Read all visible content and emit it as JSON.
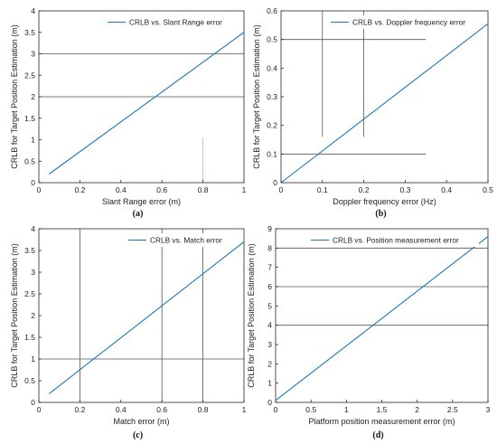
{
  "chart_data": [
    {
      "type": "line",
      "caption": "(a)",
      "xlabel": "Slant Range error (m)",
      "ylabel": "CRLB for Target Position Estimation (m)",
      "xlim": [
        0,
        1
      ],
      "ylim": [
        0,
        4
      ],
      "xticks": [
        "0",
        "0.2",
        "0.4",
        "0.6",
        "0.8",
        "1"
      ],
      "yticks": [
        "0",
        "0.5",
        "1",
        "1.5",
        "2",
        "2.5",
        "3",
        "3.5",
        "4"
      ],
      "legend_position": "top-left",
      "series": [
        {
          "name": "CRLB vs. Slant Range error",
          "x": [
            0.05,
            1.0
          ],
          "y": [
            0.2,
            3.5
          ]
        }
      ],
      "gridlines": {
        "h": [
          {
            "value": 3.0,
            "from": 0,
            "to": 1
          },
          {
            "value": 2.0,
            "from": 0,
            "to": 1
          }
        ],
        "v": [
          {
            "value": 0.8,
            "from": 0,
            "to": 1.05
          }
        ]
      }
    },
    {
      "type": "line",
      "caption": "(b)",
      "xlabel": "Doppler frequency error (Hz)",
      "ylabel": "CRLB for Target Position Estimation (m)",
      "xlim": [
        0,
        0.5
      ],
      "ylim": [
        0,
        0.6
      ],
      "xticks": [
        "0",
        "0.1",
        "0.2",
        "0.3",
        "0.4",
        "0.5"
      ],
      "yticks": [
        "0",
        "0.1",
        "0.2",
        "0.3",
        "0.4",
        "0.5",
        "0.6"
      ],
      "legend_position": "top-right",
      "series": [
        {
          "name": "CRLB vs. Doppler frequency error",
          "x": [
            0.0,
            0.5
          ],
          "y": [
            0.0,
            0.555
          ]
        }
      ],
      "gridlines": {
        "h": [
          {
            "value": 0.5,
            "from": 0,
            "to": 0.35
          },
          {
            "value": 0.1,
            "from": 0,
            "to": 0.35
          }
        ],
        "v": [
          {
            "value": 0.1,
            "from": 0.16,
            "to": 0.6
          },
          {
            "value": 0.2,
            "from": 0.16,
            "to": 0.6
          }
        ]
      }
    },
    {
      "type": "line",
      "caption": "(c)",
      "xlabel": "Match error (m)",
      "ylabel": "CRLB for Target Position Estimation (m)",
      "xlim": [
        0,
        1
      ],
      "ylim": [
        0,
        4
      ],
      "xticks": [
        "0",
        "0.2",
        "0.4",
        "0.6",
        "0.8",
        "1"
      ],
      "yticks": [
        "0",
        "0.5",
        "1",
        "1.5",
        "2",
        "2.5",
        "3",
        "3.5",
        "4"
      ],
      "legend_position": "top-right",
      "series": [
        {
          "name": "CRLB vs. Match error",
          "x": [
            0.05,
            1.0
          ],
          "y": [
            0.2,
            3.7
          ]
        }
      ],
      "gridlines": {
        "h": [
          {
            "value": 1.0,
            "from": 0,
            "to": 1
          }
        ],
        "v": [
          {
            "value": 0.2,
            "from": 0,
            "to": 4
          },
          {
            "value": 0.6,
            "from": 0,
            "to": 4
          },
          {
            "value": 0.8,
            "from": 0,
            "to": 4
          }
        ]
      }
    },
    {
      "type": "line",
      "caption": "(d)",
      "xlabel": "Platform position measurement error (m)",
      "ylabel": "CRLB for Target Position Estimation (m)",
      "xlim": [
        0,
        3
      ],
      "ylim": [
        0,
        9
      ],
      "xticks": [
        "0",
        "0.5",
        "1",
        "1.5",
        "2",
        "2.5",
        "3"
      ],
      "yticks": [
        "0",
        "1",
        "2",
        "3",
        "4",
        "5",
        "6",
        "7",
        "8",
        "9"
      ],
      "legend_position": "top-right",
      "series": [
        {
          "name": "CRLB vs. Position measurement error",
          "x": [
            0.0,
            3.0
          ],
          "y": [
            0.1,
            8.6
          ]
        }
      ],
      "gridlines": {
        "h": [
          {
            "value": 8.0,
            "from": 0,
            "to": 3
          },
          {
            "value": 6.0,
            "from": 0,
            "to": 3
          },
          {
            "value": 4.0,
            "from": 0,
            "to": 3
          }
        ],
        "v": []
      }
    }
  ],
  "colors": {
    "series": "#1f77b4",
    "axis": "#262626",
    "grid": "#555555",
    "light_grid": "#bbbbbb"
  }
}
